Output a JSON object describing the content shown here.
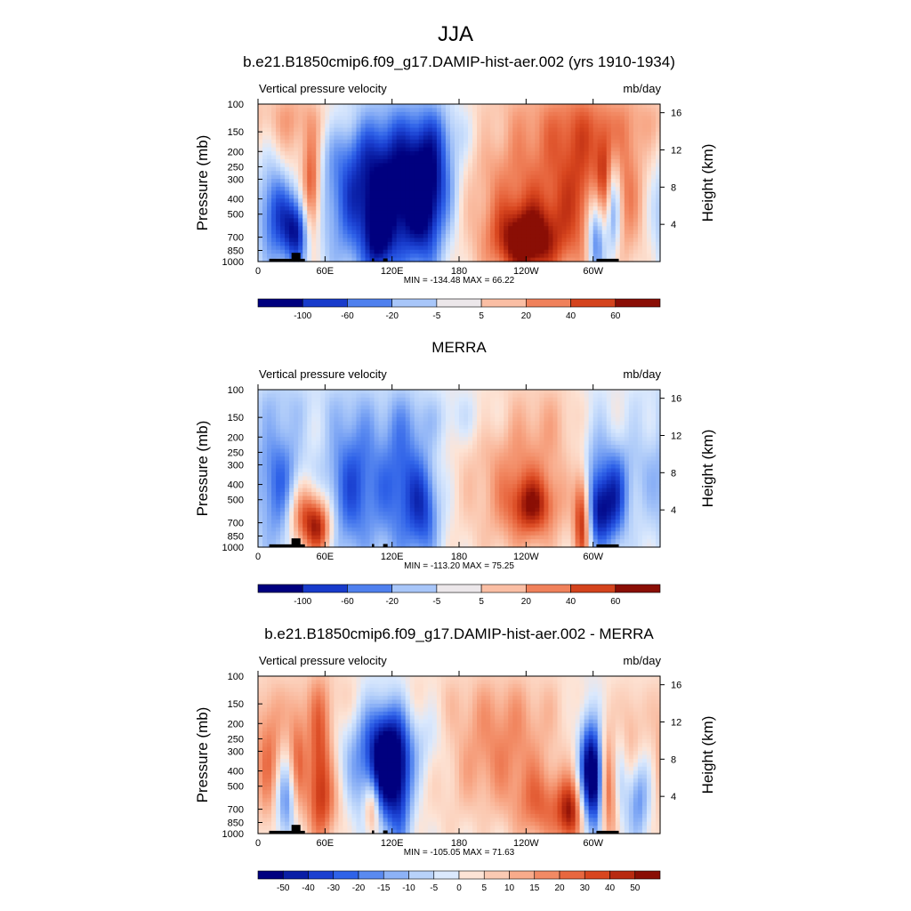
{
  "figure": {
    "title": "JJA",
    "common": {
      "variable_label": "Vertical pressure velocity",
      "units_label": "mb/day",
      "ylabel": "Pressure (mb)",
      "y2label": "Height (km)",
      "pressure_ticks": [
        100,
        150,
        200,
        250,
        300,
        400,
        500,
        700,
        850,
        1000
      ],
      "height_ticks": [
        4,
        8,
        12,
        16
      ],
      "lon_ticks": [
        {
          "lon": 0,
          "label": "0"
        },
        {
          "lon": 60,
          "label": "60E"
        },
        {
          "lon": 120,
          "label": "120E"
        },
        {
          "lon": 180,
          "label": "180"
        },
        {
          "lon": 240,
          "label": "120W"
        },
        {
          "lon": 300,
          "label": "60W"
        }
      ],
      "xlim": [
        0,
        360
      ]
    }
  },
  "chart_data": [
    {
      "type": "heatmap",
      "title": "b.e21.B1850cmip6.f09_g17.DAMIP-hist-aer.002 (yrs 1910-1934)",
      "stats": "MIN = -134.48  MAX =  66.22",
      "colorbar_labels": [
        "-100",
        "-60",
        "-20",
        "-5",
        "5",
        "20",
        "40",
        "60"
      ],
      "colorbar_colors": [
        "#00007f",
        "#0a1fa6",
        "#1a3fd0",
        "#2f62e8",
        "#5a8af0",
        "#8db2f6",
        "#b8d2fa",
        "#dbe9fd",
        "#fde4d6",
        "#fbcab3",
        "#f8ab8b",
        "#f28a64",
        "#e8673f",
        "#d8461f",
        "#b82a10",
        "#8a0e05"
      ]
    },
    {
      "type": "heatmap",
      "title": "MERRA",
      "stats": "MIN = -113.20  MAX =  75.25",
      "colorbar_labels": [
        "-100",
        "-60",
        "-20",
        "-5",
        "5",
        "20",
        "40",
        "60"
      ],
      "colorbar_colors": [
        "#00007f",
        "#0a1fa6",
        "#1a3fd0",
        "#2f62e8",
        "#5a8af0",
        "#8db2f6",
        "#b8d2fa",
        "#dbe9fd",
        "#fde4d6",
        "#fbcab3",
        "#f8ab8b",
        "#f28a64",
        "#e8673f",
        "#d8461f",
        "#b82a10",
        "#8a0e05"
      ]
    },
    {
      "type": "heatmap",
      "title": "b.e21.B1850cmip6.f09_g17.DAMIP-hist-aer.002 - MERRA",
      "stats": "MIN = -105.05  MAX =  71.63",
      "colorbar_labels": [
        "-50",
        "-40",
        "-30",
        "-20",
        "-15",
        "-10",
        "-5",
        "0",
        "5",
        "10",
        "15",
        "20",
        "30",
        "40",
        "50"
      ],
      "colorbar_colors": [
        "#00007f",
        "#0a1fa6",
        "#1a3fd0",
        "#2f62e8",
        "#5a8af0",
        "#8db2f6",
        "#b8d2fa",
        "#dbe9fd",
        "#fde4d6",
        "#fbcab3",
        "#f8ab8b",
        "#f28a64",
        "#e8673f",
        "#d8461f",
        "#b82a10",
        "#8a0e05"
      ]
    }
  ]
}
